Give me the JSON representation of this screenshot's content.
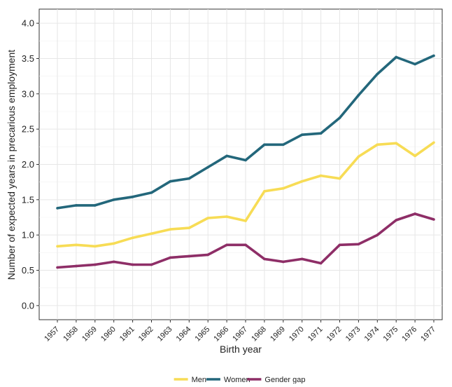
{
  "chart_data": {
    "type": "line",
    "xlabel": "Birth year",
    "ylabel": "Number of expected years in precarious employment",
    "ylim": [
      -0.2,
      4.2
    ],
    "yticks": [
      "0.0",
      "0.5",
      "1.0",
      "1.5",
      "2.0",
      "2.5",
      "3.0",
      "3.5",
      "4.0"
    ],
    "categories": [
      "1957",
      "1958",
      "1959",
      "1960",
      "1961",
      "1962",
      "1963",
      "1964",
      "1965",
      "1966",
      "1967",
      "1968",
      "1969",
      "1970",
      "1971",
      "1972",
      "1973",
      "1974",
      "1975",
      "1976",
      "1977"
    ],
    "grid": true,
    "legend_position": "bottom",
    "series": [
      {
        "name": "Men",
        "color": "#F7DC55",
        "values": [
          0.84,
          0.86,
          0.84,
          0.88,
          0.96,
          1.02,
          1.08,
          1.1,
          1.24,
          1.26,
          1.2,
          1.62,
          1.66,
          1.76,
          1.84,
          1.8,
          2.11,
          2.28,
          2.3,
          2.12,
          2.31
        ]
      },
      {
        "name": "Women",
        "color": "#23677B",
        "values": [
          1.38,
          1.42,
          1.42,
          1.5,
          1.54,
          1.6,
          1.76,
          1.8,
          1.96,
          2.12,
          2.06,
          2.28,
          2.28,
          2.42,
          2.44,
          2.66,
          2.98,
          3.28,
          3.52,
          3.42,
          3.54
        ]
      },
      {
        "name": "Gender gap",
        "color": "#8E2E67",
        "values": [
          0.54,
          0.56,
          0.58,
          0.62,
          0.58,
          0.58,
          0.68,
          0.7,
          0.72,
          0.86,
          0.86,
          0.66,
          0.62,
          0.66,
          0.6,
          0.86,
          0.87,
          1.0,
          1.21,
          1.3,
          1.22
        ]
      }
    ]
  }
}
